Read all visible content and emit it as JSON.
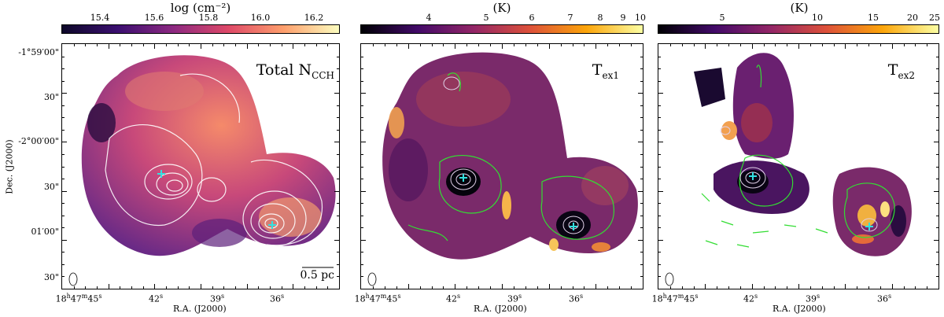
{
  "panels": [
    {
      "colorbar": {
        "title": "log (cm⁻²)",
        "ticks": [
          "15.4",
          "15.6",
          "15.8",
          "16.0",
          "16.2"
        ],
        "gradient": [
          "#0d0829",
          "#3b0f70",
          "#8c2981",
          "#de4968",
          "#fe9f6d",
          "#fcfdbf"
        ]
      },
      "label_main": "Total N",
      "label_sub": "CCH",
      "scalebar": "0.5 pc"
    },
    {
      "colorbar": {
        "title": "(K)",
        "ticks": [
          "4",
          "5",
          "6",
          "7",
          "8",
          "9",
          "10"
        ],
        "gradient": [
          "#000004",
          "#420a68",
          "#932667",
          "#dd513a",
          "#fca50a",
          "#fcffa4"
        ]
      },
      "label_main": "T",
      "label_sub": "ex1"
    },
    {
      "colorbar": {
        "title": "(K)",
        "ticks": [
          "5",
          "10",
          "15",
          "20",
          "25"
        ],
        "gradient": [
          "#000004",
          "#420a68",
          "#932667",
          "#dd513a",
          "#fca50a",
          "#fcffa4"
        ]
      },
      "label_main": "T",
      "label_sub": "ex2"
    }
  ],
  "axes": {
    "ylabel": "Dec. (J2000)",
    "xlabel": "R.A. (J2000)",
    "yticks": [
      "-1°59′00\"",
      "30\"",
      "-2°00′00\"",
      "30\"",
      "01′00\"",
      "30\""
    ],
    "xtick_first": {
      "h": "18",
      "m": "47",
      "s": "45"
    },
    "xticks": [
      "42",
      "39",
      "36"
    ]
  },
  "colors": {
    "contour_white": "#ffffff",
    "contour_green": "#33dd33",
    "marker": "#33e0e0"
  }
}
